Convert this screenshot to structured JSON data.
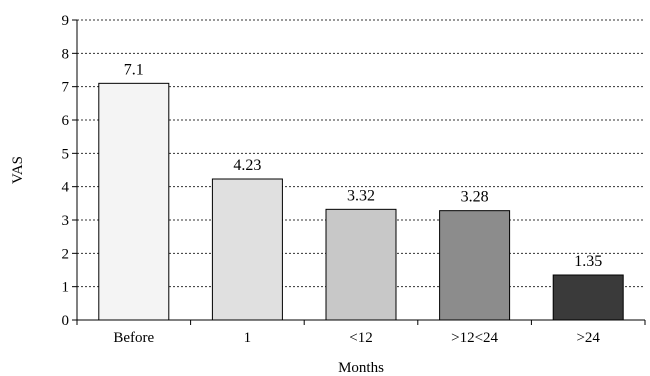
{
  "chart_data": {
    "type": "bar",
    "categories": [
      "Before",
      "1",
      "<12",
      ">12<24",
      ">24"
    ],
    "values": [
      7.1,
      4.23,
      3.32,
      3.28,
      1.35
    ],
    "value_labels": [
      "7.1",
      "4.23",
      "3.32",
      "3.28",
      "1.35"
    ],
    "bar_colors": [
      "#f4f4f4",
      "#e0e0e0",
      "#c8c8c8",
      "#8c8c8c",
      "#3a3a3a"
    ],
    "xlabel": "Months",
    "ylabel": "VAS",
    "ylim": [
      0,
      9
    ],
    "yticks": [
      0,
      1,
      2,
      3,
      4,
      5,
      6,
      7,
      8,
      9
    ],
    "grid": true,
    "grid_style": "dotted"
  }
}
